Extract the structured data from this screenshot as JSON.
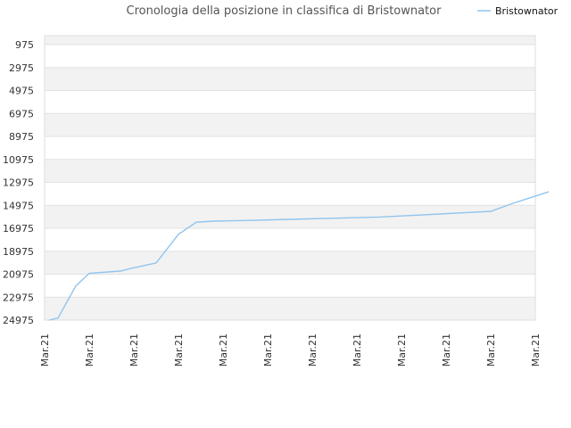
{
  "chart_data": {
    "type": "line",
    "title": "Cronologia della posizione in classifica di Bristownator",
    "xlabel": "",
    "ylabel": "",
    "y_inverted": true,
    "ylim": [
      975,
      24975
    ],
    "y_ticks": [
      975,
      2975,
      4975,
      6975,
      8975,
      10975,
      12975,
      14975,
      16975,
      18975,
      20975,
      22975,
      24975
    ],
    "x_ticks": [
      "Mar.21",
      "Mar.21",
      "Mar.21",
      "Mar.21",
      "Mar.21",
      "Mar.21",
      "Mar.21",
      "Mar.21",
      "Mar.21",
      "Mar.21",
      "Mar.21",
      "Mar.21"
    ],
    "grid": "horizontal bands",
    "legend_position": "top-right",
    "series": [
      {
        "name": "Bristownator",
        "color": "#90c4ee",
        "x": [
          0.1,
          0.3,
          0.7,
          1.0,
          1.7,
          1.9,
          2.5,
          3.0,
          3.4,
          3.8,
          4.5,
          5.5,
          6.5,
          7.5,
          8.5,
          9.5,
          10.0,
          10.5,
          10.9,
          11.3
        ],
        "y": [
          24975,
          24800,
          22000,
          20900,
          20700,
          20500,
          20000,
          17500,
          16450,
          16350,
          16300,
          16200,
          16100,
          16000,
          15800,
          15600,
          15500,
          14800,
          14300,
          13800
        ]
      }
    ]
  }
}
